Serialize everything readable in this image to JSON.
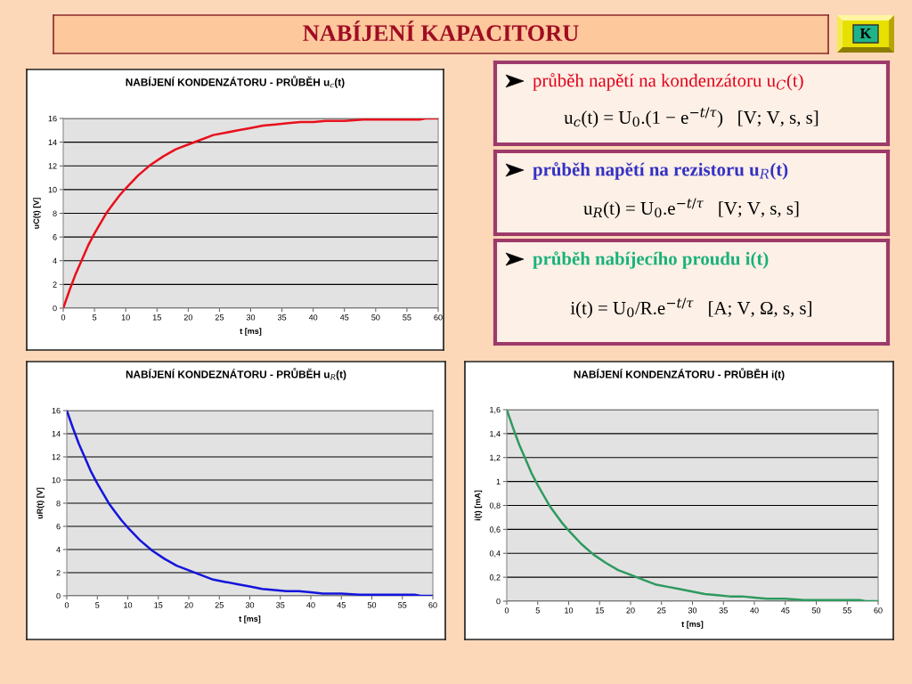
{
  "chart_data": [
    {
      "type": "other",
      "title": "NABÍJENÍ KAPACITORU",
      "annotations": [
        "K"
      ]
    },
    {
      "type": "line",
      "title": "NABÍJENÍ KONDENZÁTORU - PRŮBĚH u$_{c}$(t)",
      "xlabel": "t [ms]",
      "ylabel": "uC(t) [V]",
      "x": [
        0,
        1,
        2,
        3,
        4,
        5,
        6,
        7,
        8,
        9,
        10,
        12,
        14,
        16,
        18,
        20,
        22,
        24,
        26,
        28,
        30,
        32,
        34,
        36,
        38,
        40,
        42,
        45,
        48,
        50,
        55,
        57,
        58,
        60
      ],
      "series": [
        {
          "color": "#e8101c",
          "values": [
            0,
            1.5,
            2.9,
            4.1,
            5.3,
            6.3,
            7.2,
            8.1,
            8.8,
            9.5,
            10.1,
            11.2,
            12.1,
            12.8,
            13.4,
            13.8,
            14.2,
            14.6,
            14.8,
            15.0,
            15.2,
            15.4,
            15.5,
            15.6,
            15.7,
            15.7,
            15.8,
            15.8,
            15.9,
            15.9,
            15.9,
            15.9,
            16,
            16
          ]
        }
      ],
      "xlim": [
        0,
        60
      ],
      "ylim": [
        0,
        16
      ],
      "xticks": [
        0,
        5,
        10,
        15,
        20,
        25,
        30,
        35,
        40,
        45,
        50,
        55,
        60
      ],
      "yticks": [
        0,
        2,
        4,
        6,
        8,
        10,
        12,
        14,
        16
      ],
      "grid": "y",
      "line_style": "solid"
    },
    {
      "type": "other",
      "title": "průběh napětí na kondenzátoru u$_{C}$(t)",
      "annotations": [
        "u$_{c}$(t) = U$_{0}$.(1 − e$^{−t/τ}$)   [V; V, s, s]"
      ]
    },
    {
      "type": "other",
      "title": "průběh napětí na rezistoru u$_{R}$(t)",
      "annotations": [
        "u$_{R}$(t) = U$_{0}$.e$^{−t/τ}$   [V; V, s, s]"
      ]
    },
    {
      "type": "other",
      "title": "průběh nabíjecího proudu i(t)",
      "annotations": [
        "i(t) = U$_{0}$/R.e$^{−t/τ}$   [A; V, Ω, s, s]"
      ]
    },
    {
      "type": "line",
      "title": "NABÍJENÍ KONDEZNÁTORU - PRŮBĚH u$_{R}$(t)",
      "xlabel": "t [ms]",
      "ylabel": "uR(t) [V]",
      "x": [
        0,
        1,
        2,
        3,
        4,
        5,
        6,
        7,
        8,
        9,
        10,
        12,
        14,
        16,
        18,
        20,
        22,
        24,
        26,
        28,
        30,
        32,
        34,
        36,
        38,
        40,
        42,
        45,
        48,
        50,
        55,
        57,
        58,
        60
      ],
      "series": [
        {
          "color": "#1414dc",
          "values": [
            16,
            14.5,
            13.1,
            11.9,
            10.7,
            9.7,
            8.8,
            7.9,
            7.2,
            6.5,
            5.9,
            4.8,
            3.9,
            3.2,
            2.6,
            2.2,
            1.8,
            1.4,
            1.2,
            1.0,
            0.8,
            0.6,
            0.5,
            0.4,
            0.4,
            0.3,
            0.2,
            0.2,
            0.1,
            0.1,
            0.1,
            0.1,
            0,
            0
          ]
        }
      ],
      "xlim": [
        0,
        60
      ],
      "ylim": [
        0,
        16
      ],
      "xticks": [
        0,
        5,
        10,
        15,
        20,
        25,
        30,
        35,
        40,
        45,
        50,
        55,
        60
      ],
      "yticks": [
        0,
        2,
        4,
        6,
        8,
        10,
        12,
        14,
        16
      ],
      "grid": "y",
      "line_style": "solid"
    },
    {
      "type": "line",
      "title": "NABÍJENÍ KONDENZÁTORU - PRŮBĚH i(t)",
      "xlabel": "t [ms]",
      "ylabel": "i(t) [mA]",
      "x": [
        0,
        1,
        2,
        3,
        4,
        5,
        6,
        7,
        8,
        9,
        10,
        12,
        14,
        16,
        18,
        20,
        22,
        24,
        26,
        28,
        30,
        32,
        34,
        36,
        38,
        40,
        42,
        45,
        48,
        50,
        55,
        57,
        58,
        60
      ],
      "series": [
        {
          "color": "#2e9a5e",
          "values": [
            1.6,
            1.45,
            1.31,
            1.19,
            1.07,
            0.97,
            0.88,
            0.79,
            0.72,
            0.65,
            0.59,
            0.48,
            0.39,
            0.32,
            0.26,
            0.22,
            0.18,
            0.14,
            0.12,
            0.1,
            0.08,
            0.06,
            0.05,
            0.04,
            0.04,
            0.03,
            0.02,
            0.02,
            0.01,
            0.01,
            0.01,
            0.01,
            0,
            0
          ]
        }
      ],
      "xlim": [
        0,
        60
      ],
      "ylim": [
        0,
        1.6
      ],
      "xticks": [
        0,
        5,
        10,
        15,
        20,
        25,
        30,
        35,
        40,
        45,
        50,
        55,
        60
      ],
      "yticks": [
        0,
        {
          "value": 0.2,
          "label": "0,2"
        },
        {
          "value": 0.4,
          "label": "0,4"
        },
        {
          "value": 0.6,
          "label": "0,6"
        },
        {
          "value": 0.8,
          "label": "0,8"
        },
        1,
        {
          "value": 1.2,
          "label": "1,2"
        },
        {
          "value": 1.4,
          "label": "1,4"
        },
        {
          "value": 1.6,
          "label": "1,6"
        }
      ],
      "grid": "y",
      "line_style": "solid"
    }
  ]
}
